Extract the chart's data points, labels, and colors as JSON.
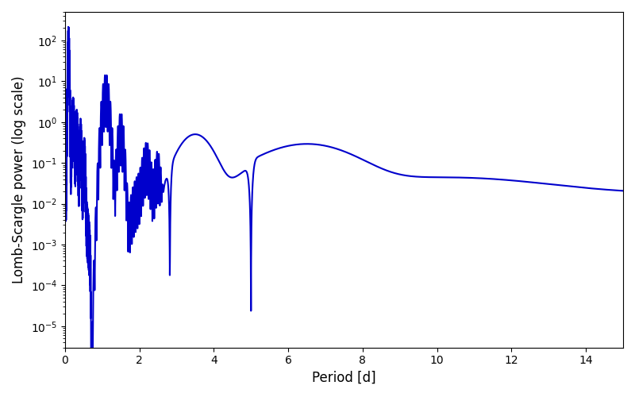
{
  "xlabel": "Period [d]",
  "ylabel": "Lomb-Scargle power (log scale)",
  "line_color": "#0000CC",
  "line_width": 1.5,
  "xlim": [
    0,
    15
  ],
  "ylim": [
    3e-06,
    500.0
  ],
  "figsize": [
    8.0,
    5.0
  ],
  "dpi": 100
}
